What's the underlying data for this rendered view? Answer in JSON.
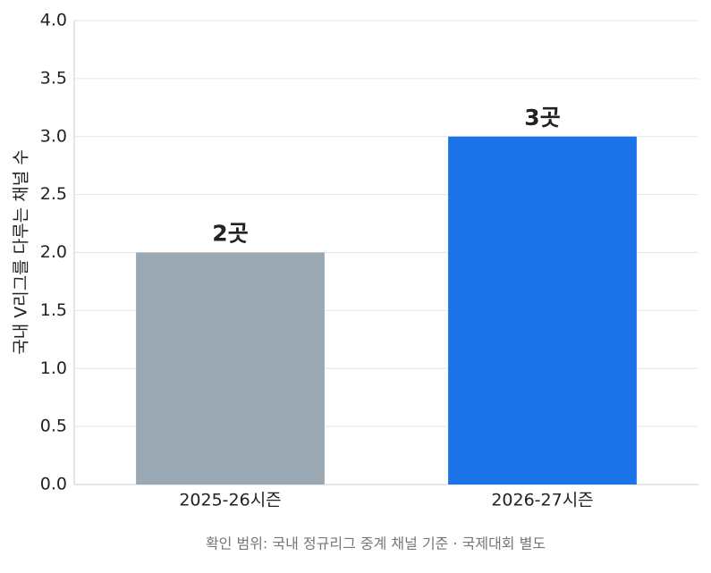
{
  "chart_data": {
    "type": "bar",
    "y_label": "국내 V리그를 다루는 채널 수",
    "footnote": "확인 범위: 국내 정규리그 중계 채널 기준 · 국제대회 별도",
    "categories": [
      "2025-26시즌",
      "2026-27시즌"
    ],
    "values": [
      2,
      3
    ],
    "value_labels": [
      "2곳",
      "3곳"
    ],
    "colors": [
      "#9aa8b4",
      "#1a73e8"
    ],
    "ylim": [
      0,
      4
    ],
    "yticks": [
      {
        "value": 0,
        "label": "0.0"
      },
      {
        "value": 0.5,
        "label": "0.5"
      },
      {
        "value": 1,
        "label": "1.0"
      },
      {
        "value": 1.5,
        "label": "1.5"
      },
      {
        "value": 2,
        "label": "2.0"
      },
      {
        "value": 2.5,
        "label": "2.5"
      },
      {
        "value": 3,
        "label": "3.0"
      },
      {
        "value": 3.5,
        "label": "3.5"
      },
      {
        "value": 4,
        "label": "4.0"
      }
    ],
    "grid": true
  }
}
